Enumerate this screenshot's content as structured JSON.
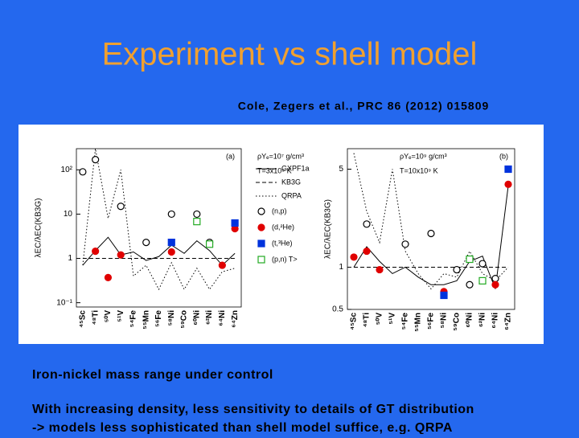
{
  "title": "Experiment vs shell model",
  "citation": "Cole, Zegers et al., PRC 86 (2012) 015809",
  "notes": [
    "Iron-nickel mass range under control",
    "With increasing density, less sensitivity to details of GT distribution",
    "-> models less sophisticated than shell model suffice, e.g. QRPA"
  ],
  "chart_data": [
    {
      "type": "line",
      "panel": "(a)",
      "annotations": [
        "ρYₑ=10⁷ g/cm³",
        "T=3x10⁹ K"
      ],
      "ylabel": "λEC/λEC(KB3G)",
      "categories": [
        "⁴⁵Sc",
        "⁴⁸Ti",
        "⁵⁰V",
        "⁵¹V",
        "⁵⁴Fe",
        "⁵⁵Mn",
        "⁵⁶Fe",
        "⁵⁸Ni",
        "⁵⁹Co",
        "⁶⁰Ni",
        "⁶²Ni",
        "⁶⁴Ni",
        "⁶⁴Zn"
      ],
      "ylog": true,
      "ylim": [
        0.08,
        300
      ],
      "yticks": [
        {
          "value": 100,
          "label": "10²"
        },
        10,
        1,
        {
          "value": 0.1,
          "label": "10⁻¹"
        }
      ],
      "legend": true,
      "series": [
        {
          "name": "GXPF1a",
          "color": "#000000",
          "dash": "solid",
          "values": [
            0.7,
            1.5,
            3.0,
            1.2,
            1.4,
            0.9,
            1.1,
            2.0,
            1.3,
            2.5,
            1.5,
            0.7,
            1.3
          ]
        },
        {
          "name": "KB3G",
          "color": "#000000",
          "dash": "dashed",
          "values": [
            1,
            1,
            1,
            1,
            1,
            1,
            1,
            1,
            1,
            1,
            1,
            1,
            1
          ]
        },
        {
          "name": "QRPA",
          "color": "#000000",
          "dash": "dotted",
          "values": [
            0.7,
            300,
            8,
            100,
            0.4,
            0.7,
            0.2,
            0.8,
            0.2,
            0.6,
            0.2,
            0.5,
            0.6
          ]
        },
        {
          "name": "(n,p)",
          "color": "#000000",
          "marker": "circle-open",
          "values": [
            90,
            170,
            null,
            15,
            null,
            2.3,
            null,
            10,
            null,
            10,
            2.3,
            null,
            null
          ]
        },
        {
          "name": "(d,²He)",
          "color": "#e00000",
          "marker": "circle",
          "values": [
            null,
            1.45,
            0.37,
            1.2,
            null,
            null,
            null,
            1.4,
            null,
            null,
            null,
            0.7,
            4.7
          ]
        },
        {
          "name": "(t,³He)",
          "color": "#0033dd",
          "marker": "square",
          "values": [
            null,
            null,
            null,
            null,
            null,
            null,
            null,
            2.3,
            null,
            null,
            null,
            null,
            6.3
          ]
        },
        {
          "name": "(p,n) T>",
          "color": "#22aa22",
          "marker": "square-open",
          "values": [
            null,
            null,
            null,
            null,
            null,
            null,
            null,
            null,
            null,
            6.8,
            2.1,
            null,
            null
          ]
        }
      ]
    },
    {
      "type": "line",
      "panel": "(b)",
      "annotations": [
        "ρYₑ=10⁹ g/cm³",
        "T=10x10⁹ K"
      ],
      "ylabel": "λEC/λEC(KB3G)",
      "categories": [
        "⁴⁵Sc",
        "⁴⁸Ti",
        "⁵⁰V",
        "⁵¹V",
        "⁵⁴Fe",
        "⁵⁵Mn",
        "⁵⁶Fe",
        "⁵⁸Ni",
        "⁵⁹Co",
        "⁶⁰Ni",
        "⁶²Ni",
        "⁶⁴Ni",
        "⁶⁴Zn"
      ],
      "ylog": true,
      "ylim": [
        0.5,
        7
      ],
      "yticks": [
        0.5,
        1,
        5
      ],
      "legend": false,
      "series": [
        {
          "name": "GXPF1a",
          "color": "#000000",
          "dash": "solid",
          "values": [
            1.0,
            1.4,
            1.1,
            0.9,
            1.0,
            0.85,
            0.75,
            0.75,
            0.8,
            1.1,
            1.2,
            0.7,
            3.8
          ]
        },
        {
          "name": "KB3G",
          "color": "#000000",
          "dash": "dashed",
          "values": [
            1,
            1,
            1,
            1,
            1,
            1,
            1,
            1,
            1,
            1,
            1,
            1,
            1
          ]
        },
        {
          "name": "QRPA",
          "color": "#000000",
          "dash": "dotted",
          "values": [
            6.5,
            2.5,
            1.5,
            5,
            1.3,
            0.9,
            0.7,
            0.9,
            0.85,
            1.3,
            0.9,
            0.8,
            1.0
          ]
        },
        {
          "name": "(n,p)",
          "color": "#000000",
          "marker": "circle-open",
          "values": [
            null,
            2.03,
            null,
            null,
            1.46,
            null,
            1.74,
            null,
            0.96,
            0.75,
            1.06,
            0.83,
            null
          ]
        },
        {
          "name": "(d,²He)",
          "color": "#e00000",
          "marker": "circle",
          "values": [
            1.18,
            1.3,
            0.96,
            null,
            null,
            null,
            null,
            0.67,
            null,
            null,
            null,
            0.75,
            3.9
          ]
        },
        {
          "name": "(t,³He)",
          "color": "#0033dd",
          "marker": "square",
          "values": [
            null,
            null,
            null,
            null,
            null,
            null,
            null,
            0.63,
            null,
            null,
            null,
            null,
            5.0
          ]
        },
        {
          "name": "(p,n) T>",
          "color": "#22aa22",
          "marker": "square-open",
          "values": [
            null,
            null,
            null,
            null,
            null,
            null,
            null,
            null,
            null,
            1.14,
            0.8,
            null,
            null
          ]
        }
      ]
    }
  ]
}
